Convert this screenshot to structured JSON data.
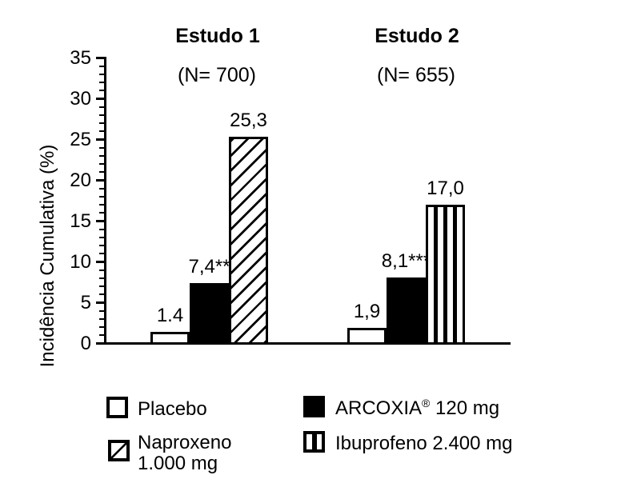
{
  "colors": {
    "ink": "#000000",
    "background": "#ffffff"
  },
  "chart_data": {
    "type": "bar",
    "ylabel": "Incidência Cumulativa (%)",
    "ylim": [
      0,
      35
    ],
    "yticks": [
      0,
      5,
      10,
      15,
      20,
      25,
      30,
      35
    ],
    "minor_tick_step": 1,
    "grid": false,
    "legend_position": "bottom",
    "groups": [
      {
        "title": "Estudo 1",
        "subtitle": "(N= 700)",
        "bars": [
          {
            "series": "Placebo",
            "value": 1.4,
            "label": "1.4",
            "pattern": "plain"
          },
          {
            "series": "ARCOXIA 120 mg",
            "value": 7.4,
            "label": "7,4**",
            "pattern": "solid"
          },
          {
            "series": "Naproxeno 1.000 mg",
            "value": 25.3,
            "label": "25,3",
            "pattern": "diag"
          }
        ]
      },
      {
        "title": "Estudo 2",
        "subtitle": "(N= 655)",
        "bars": [
          {
            "series": "Placebo",
            "value": 1.9,
            "label": "1,9",
            "pattern": "plain"
          },
          {
            "series": "ARCOXIA 120 mg",
            "value": 8.1,
            "label": "8,1***",
            "pattern": "solid"
          },
          {
            "series": "Ibuprofeno 2.400 mg",
            "value": 17.0,
            "label": "17,0",
            "pattern": "vert"
          }
        ]
      }
    ],
    "legend": {
      "placebo": {
        "text": "Placebo"
      },
      "arcoxia": {
        "brand": "ARCOXIA",
        "reg": "®",
        "suffix": " 120 mg"
      },
      "naproxeno": {
        "line1": "Naproxeno",
        "line2": "1.000 mg"
      },
      "ibuprofeno": {
        "text": "Ibuprofeno 2.400 mg"
      }
    }
  }
}
